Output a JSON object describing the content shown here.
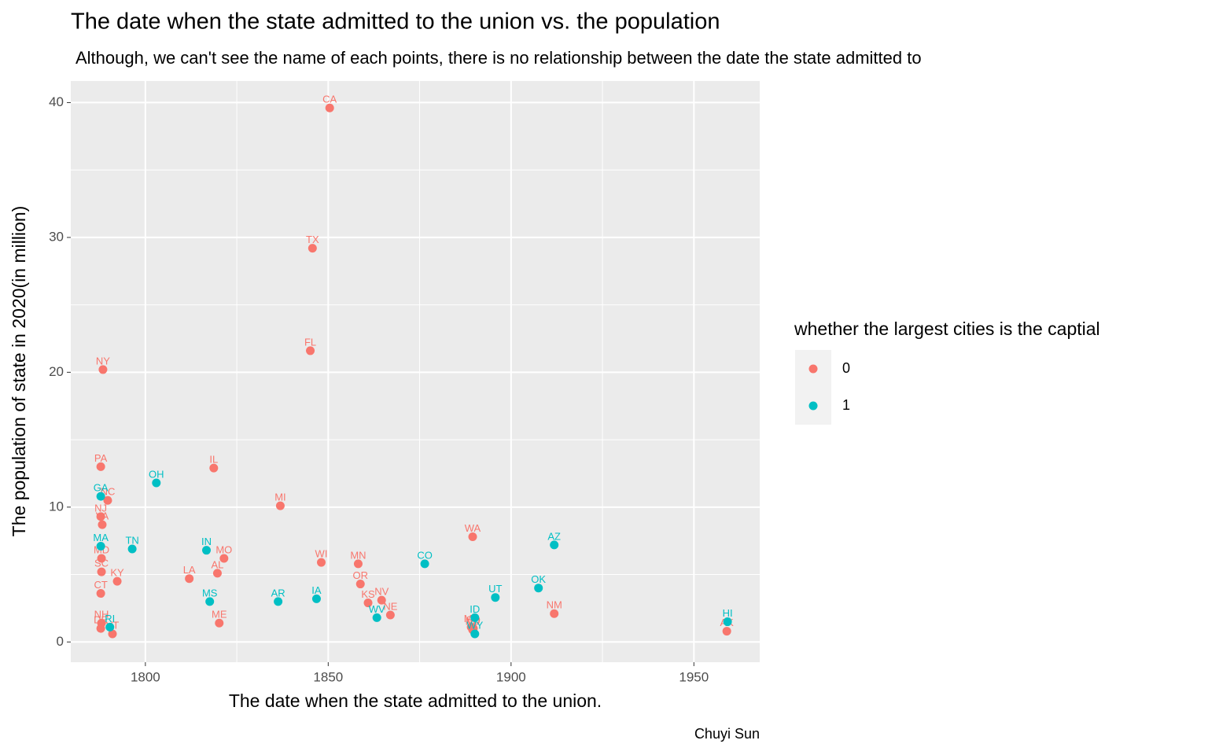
{
  "chart_data": {
    "type": "scatter",
    "title": "The date when the state admitted to the union vs. the population",
    "subtitle": "Although, we can't see the name of each points, there is no relationship between the date the state admitted to",
    "x_label": "The date when the state admitted to the union.",
    "y_label": "The population of state in 2020(in million)",
    "caption": "Chuyi Sun",
    "legend_title": "whether the largest cities is the captial",
    "legend_position": "right",
    "grid": true,
    "xlim": [
      1779.6,
      1968
    ],
    "ylim": [
      -1.5,
      41.6
    ],
    "xticks": [
      1800,
      1850,
      1900,
      1950
    ],
    "yticks": [
      0,
      10,
      20,
      30,
      40
    ],
    "x_minor_grid": [
      1825,
      1875,
      1925
    ],
    "y_minor_grid": [
      5,
      15,
      25,
      35
    ],
    "series": [
      {
        "name": "0",
        "color": "#F8766D",
        "labels": [
          "CA",
          "TX",
          "FL",
          "NY",
          "PA",
          "IL",
          "NC",
          "MI",
          "NJ",
          "VA",
          "WA",
          "MO",
          "MD",
          "WI",
          "MN",
          "SC",
          "AL",
          "LA",
          "KY",
          "OR",
          "CT",
          "NV",
          "KS",
          "NM",
          "NE",
          "NH",
          "ME",
          "MT",
          "DE",
          "SD",
          "ND",
          "AK",
          "VT"
        ],
        "x": [
          1850.4,
          1845.7,
          1845.1,
          1788.4,
          1787.8,
          1818.7,
          1789.7,
          1836.9,
          1787.8,
          1788.2,
          1889.5,
          1821.5,
          1788.0,
          1848.1,
          1858.2,
          1788.0,
          1819.7,
          1812.0,
          1792.3,
          1858.8,
          1787.8,
          1864.6,
          1860.9,
          1911.8,
          1867.0,
          1788.0,
          1820.2,
          1889.1,
          1787.8,
          1889.7,
          1889.5,
          1959.0,
          1791.0
        ],
        "values": [
          39.6,
          29.2,
          21.6,
          20.2,
          13.0,
          12.9,
          10.5,
          10.1,
          9.3,
          8.7,
          7.8,
          6.2,
          6.2,
          5.9,
          5.8,
          5.2,
          5.1,
          4.7,
          4.5,
          4.3,
          3.6,
          3.1,
          2.9,
          2.1,
          2.0,
          1.4,
          1.4,
          1.1,
          1.0,
          1.0,
          0.9,
          0.8,
          0.6
        ]
      },
      {
        "name": "1",
        "color": "#00BFC4",
        "labels": [
          "OH",
          "GA",
          "AZ",
          "MA",
          "TN",
          "IN",
          "CO",
          "OK",
          "UT",
          "IA",
          "AR",
          "MS",
          "ID",
          "WV",
          "HI",
          "RI",
          "WY"
        ],
        "x": [
          1803.0,
          1787.8,
          1911.8,
          1787.8,
          1796.4,
          1816.7,
          1876.4,
          1907.5,
          1895.7,
          1846.8,
          1836.3,
          1817.6,
          1890.1,
          1863.3,
          1959.2,
          1790.3,
          1890.1
        ],
        "values": [
          11.8,
          10.8,
          7.2,
          7.1,
          6.9,
          6.8,
          5.8,
          4.0,
          3.3,
          3.2,
          3.0,
          3.0,
          1.8,
          1.8,
          1.5,
          1.1,
          0.6
        ]
      }
    ]
  }
}
